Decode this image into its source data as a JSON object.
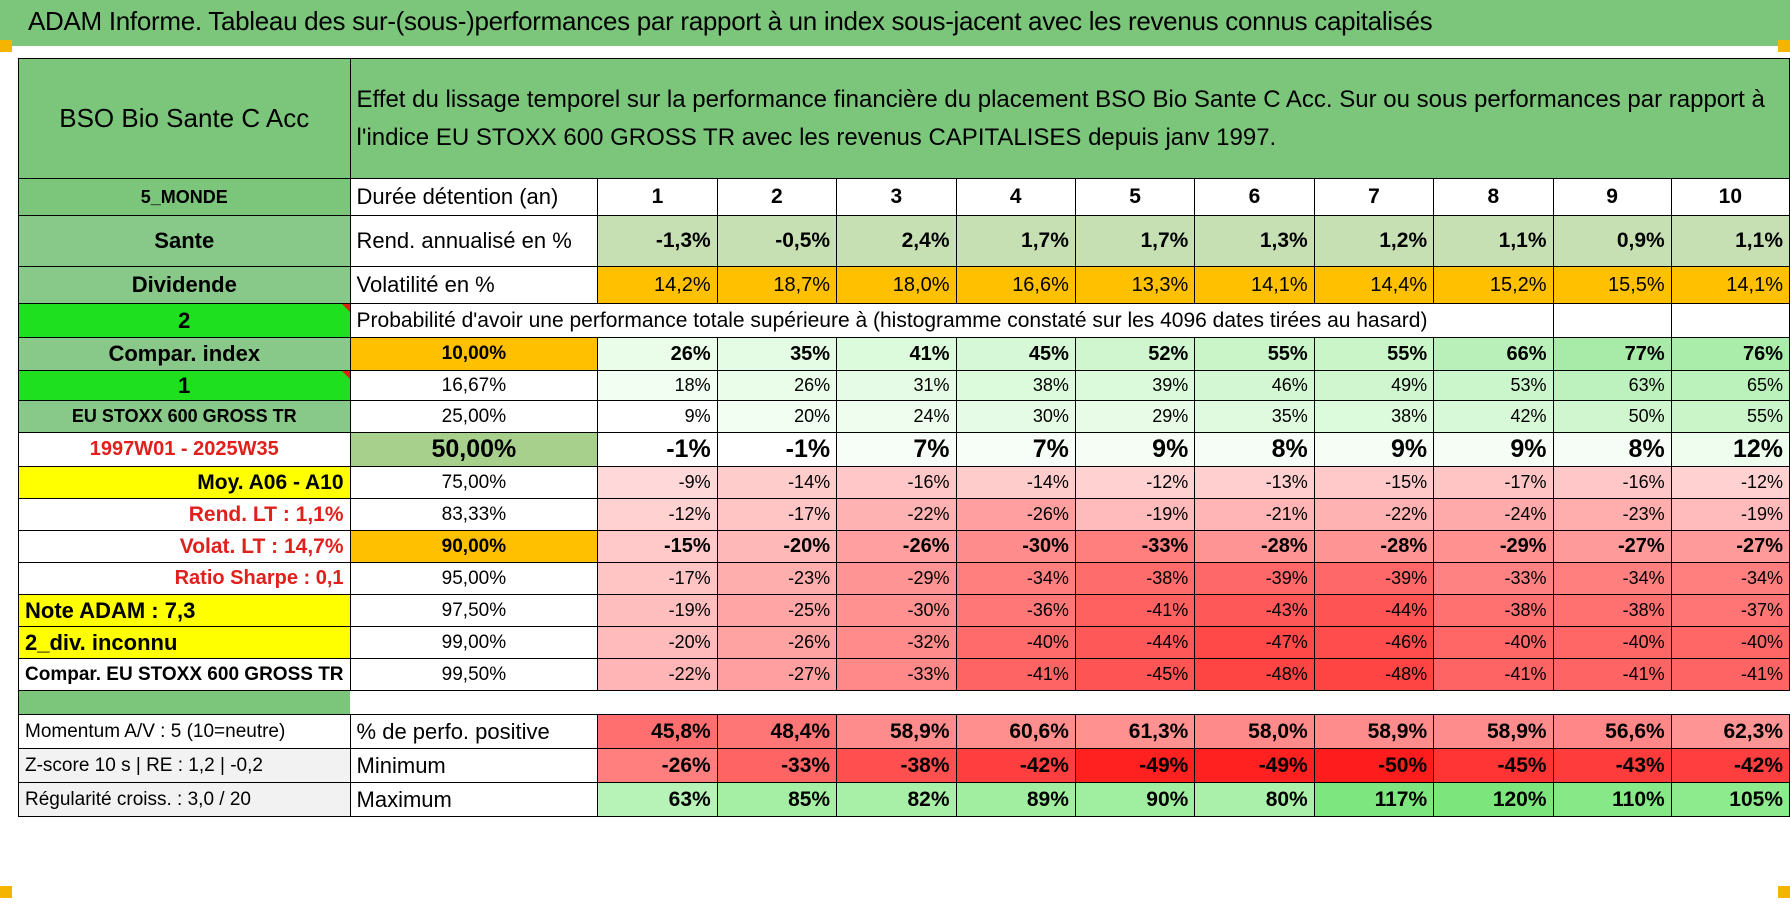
{
  "title": "ADAM Informe. Tableau des sur-(sous-)performances par rapport à un index sous-jacent avec les revenus connus capitalisés",
  "header": {
    "fund_name": "BSO Bio Sante C Acc",
    "description_line1": "Effet du lissage temporel sur la performance financière du placement BSO Bio Sante C Acc. Sur ou sous performances par rapport à",
    "description_line2": "l'indice EU STOXX 600 GROSS TR avec les revenus CAPITALISES depuis janv 1997."
  },
  "labels": {
    "zone": "5_MONDE",
    "sector": "Sante",
    "income": "Dividende",
    "two": "2",
    "compar_index": "Compar. index",
    "one": "1",
    "index_name": "EU STOXX 600 GROSS TR",
    "period": "1997W01 - 2025W35",
    "moy": "Moy. A06 - A10",
    "rend_lt": "Rend. LT :   1,1%",
    "volat_lt": "Volat. LT :   14,7%",
    "sharpe": "Ratio Sharpe :    0,1",
    "note": "Note ADAM : 7,3",
    "div": "2_div. inconnu",
    "compar_name": "Compar. EU STOXX 600 GROSS TR",
    "momentum": "Momentum A/V : 5 (10=neutre)",
    "zscore": "Z-score 10 s | RE : 1,2 | -0,2",
    "regularite": "Régularité croiss. : 3,0 / 20"
  },
  "row_headers": {
    "duree": "Durée détention (an)",
    "rend": "Rend. annualisé en %",
    "vol": "Volatilité en %",
    "proba": "Probabilité d'avoir une performance totale supérieure à (histogramme constaté sur les 4096 dates tirées au hasard)",
    "pos": "% de perfo. positive",
    "min": "Minimum",
    "max": "Maximum"
  },
  "years": [
    "1",
    "2",
    "3",
    "4",
    "5",
    "6",
    "7",
    "8",
    "9",
    "10"
  ],
  "rend": [
    "-1,3%",
    "-0,5%",
    "2,4%",
    "1,7%",
    "1,7%",
    "1,3%",
    "1,2%",
    "1,1%",
    "0,9%",
    "1,1%"
  ],
  "vol": [
    "14,2%",
    "18,7%",
    "18,0%",
    "16,6%",
    "13,3%",
    "14,1%",
    "14,4%",
    "15,2%",
    "15,5%",
    "14,1%"
  ],
  "quantiles": [
    {
      "q": "10,00%",
      "values": [
        "26%",
        "35%",
        "41%",
        "45%",
        "52%",
        "55%",
        "55%",
        "66%",
        "77%",
        "76%"
      ]
    },
    {
      "q": "16,67%",
      "values": [
        "18%",
        "26%",
        "31%",
        "38%",
        "39%",
        "46%",
        "49%",
        "53%",
        "63%",
        "65%"
      ]
    },
    {
      "q": "25,00%",
      "values": [
        "9%",
        "20%",
        "24%",
        "30%",
        "29%",
        "35%",
        "38%",
        "42%",
        "50%",
        "55%"
      ]
    },
    {
      "q": "50,00%",
      "values": [
        "-1%",
        "-1%",
        "7%",
        "7%",
        "9%",
        "8%",
        "9%",
        "9%",
        "8%",
        "12%"
      ]
    },
    {
      "q": "75,00%",
      "values": [
        "-9%",
        "-14%",
        "-16%",
        "-14%",
        "-12%",
        "-13%",
        "-15%",
        "-17%",
        "-16%",
        "-12%"
      ]
    },
    {
      "q": "83,33%",
      "values": [
        "-12%",
        "-17%",
        "-22%",
        "-26%",
        "-19%",
        "-21%",
        "-22%",
        "-24%",
        "-23%",
        "-19%"
      ]
    },
    {
      "q": "90,00%",
      "values": [
        "-15%",
        "-20%",
        "-26%",
        "-30%",
        "-33%",
        "-28%",
        "-28%",
        "-29%",
        "-27%",
        "-27%"
      ]
    },
    {
      "q": "95,00%",
      "values": [
        "-17%",
        "-23%",
        "-29%",
        "-34%",
        "-38%",
        "-39%",
        "-39%",
        "-33%",
        "-34%",
        "-34%"
      ]
    },
    {
      "q": "97,50%",
      "values": [
        "-19%",
        "-25%",
        "-30%",
        "-36%",
        "-41%",
        "-43%",
        "-44%",
        "-38%",
        "-38%",
        "-37%"
      ]
    },
    {
      "q": "99,00%",
      "values": [
        "-20%",
        "-26%",
        "-32%",
        "-40%",
        "-44%",
        "-47%",
        "-46%",
        "-40%",
        "-40%",
        "-40%"
      ]
    },
    {
      "q": "99,50%",
      "values": [
        "-22%",
        "-27%",
        "-33%",
        "-41%",
        "-45%",
        "-48%",
        "-48%",
        "-41%",
        "-41%",
        "-41%"
      ]
    }
  ],
  "pos": [
    "45,8%",
    "48,4%",
    "58,9%",
    "60,6%",
    "61,3%",
    "58,0%",
    "58,9%",
    "58,9%",
    "56,6%",
    "62,3%"
  ],
  "min": [
    "-26%",
    "-33%",
    "-38%",
    "-42%",
    "-49%",
    "-49%",
    "-50%",
    "-45%",
    "-43%",
    "-42%"
  ],
  "max": [
    "63%",
    "85%",
    "82%",
    "89%",
    "90%",
    "80%",
    "117%",
    "120%",
    "110%",
    "105%"
  ],
  "colors": {
    "green_header": "#7cc67c",
    "green_label": "#88c888",
    "bright_green": "#1ee01e",
    "orange": "#ffc000",
    "yellow": "#ffff00",
    "red_text": "#e0201c"
  }
}
